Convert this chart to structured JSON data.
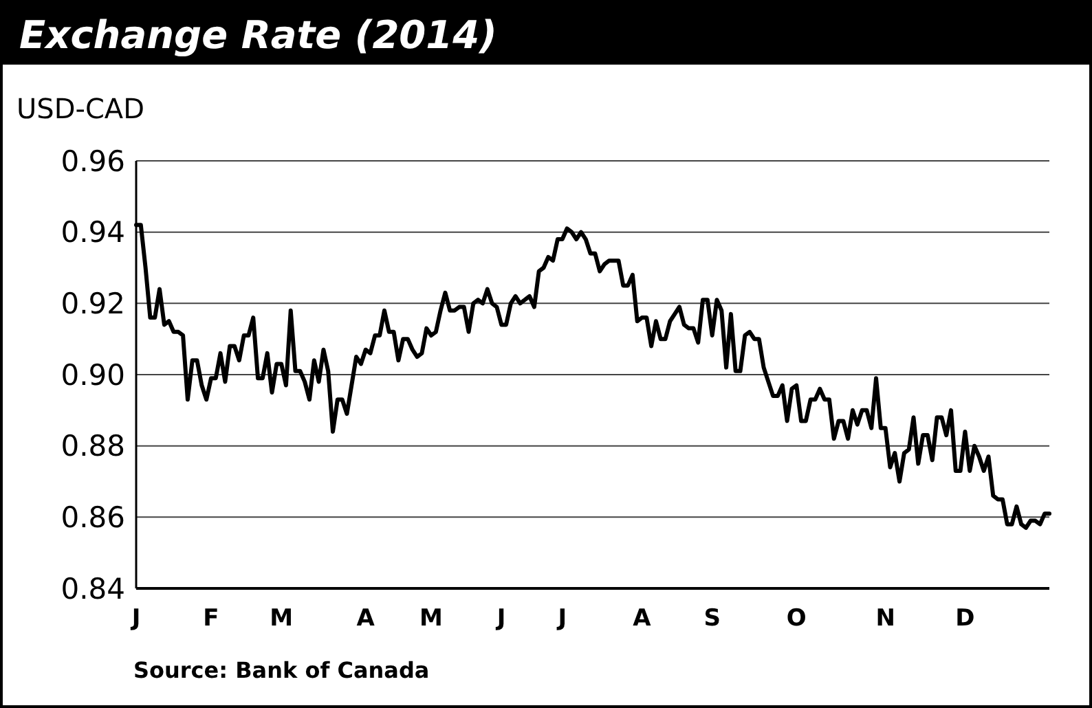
{
  "chart_data": {
    "type": "line",
    "title": "Exchange Rate (2014)",
    "ylabel": "USD-CAD",
    "annotations": [
      "Source: Bank of Canada"
    ],
    "categories": [
      "J",
      null,
      null,
      null,
      null,
      null,
      null,
      null,
      null,
      null,
      null,
      null,
      null,
      null,
      null,
      null,
      "F",
      null,
      null,
      null,
      null,
      null,
      null,
      null,
      null,
      null,
      null,
      null,
      null,
      null,
      null,
      "M",
      null,
      null,
      null,
      null,
      null,
      null,
      null,
      null,
      null,
      null,
      null,
      null,
      null,
      null,
      null,
      null,
      null,
      "A",
      null,
      null,
      null,
      null,
      null,
      null,
      null,
      null,
      null,
      null,
      null,
      null,
      null,
      "M",
      null,
      null,
      null,
      null,
      null,
      null,
      null,
      null,
      null,
      null,
      null,
      null,
      null,
      null,
      "J",
      null,
      null,
      null,
      null,
      null,
      null,
      null,
      null,
      null,
      null,
      null,
      null,
      "J",
      null,
      null,
      null,
      null,
      null,
      null,
      null,
      null,
      null,
      null,
      null,
      null,
      null,
      null,
      null,
      null,
      "A",
      null,
      null,
      null,
      null,
      null,
      null,
      null,
      null,
      null,
      null,
      null,
      null,
      null,
      null,
      "S",
      null,
      null,
      null,
      null,
      null,
      null,
      null,
      null,
      null,
      null,
      null,
      null,
      null,
      null,
      null,
      null,
      null,
      "O",
      null,
      null,
      null,
      null,
      null,
      null,
      null,
      null,
      null,
      null,
      null,
      null,
      null,
      null,
      null,
      null,
      null,
      null,
      "N",
      null,
      null,
      null,
      null,
      null,
      null,
      null,
      null,
      null,
      null,
      null,
      null,
      null,
      null,
      null,
      null,
      "D",
      null,
      null,
      null,
      null,
      null,
      null,
      null,
      null,
      null,
      null,
      null,
      null,
      null,
      null,
      null,
      null,
      null,
      null
    ],
    "values": [
      0.942,
      0.942,
      0.93,
      0.916,
      0.916,
      0.924,
      0.914,
      0.915,
      0.912,
      0.912,
      0.911,
      0.893,
      0.904,
      0.904,
      0.897,
      0.893,
      0.899,
      0.899,
      0.906,
      0.898,
      0.908,
      0.908,
      0.904,
      0.911,
      0.911,
      0.916,
      0.899,
      0.899,
      0.906,
      0.895,
      0.903,
      0.903,
      0.897,
      0.918,
      0.901,
      0.901,
      0.898,
      0.893,
      0.904,
      0.898,
      0.907,
      0.901,
      0.884,
      0.893,
      0.893,
      0.889,
      0.897,
      0.905,
      0.903,
      0.907,
      0.906,
      0.911,
      0.911,
      0.918,
      0.912,
      0.912,
      0.904,
      0.91,
      0.91,
      0.907,
      0.905,
      0.906,
      0.913,
      0.911,
      0.912,
      0.918,
      0.923,
      0.918,
      0.918,
      0.919,
      0.919,
      0.912,
      0.92,
      0.921,
      0.92,
      0.924,
      0.92,
      0.919,
      0.914,
      0.914,
      0.92,
      0.922,
      0.92,
      0.921,
      0.922,
      0.919,
      0.929,
      0.93,
      0.933,
      0.932,
      0.938,
      0.938,
      0.941,
      0.94,
      0.938,
      0.94,
      0.938,
      0.934,
      0.934,
      0.929,
      0.931,
      0.932,
      0.932,
      0.932,
      0.925,
      0.925,
      0.928,
      0.915,
      0.916,
      0.916,
      0.908,
      0.915,
      0.91,
      0.91,
      0.915,
      0.917,
      0.919,
      0.914,
      0.913,
      0.913,
      0.909,
      0.921,
      0.921,
      0.911,
      0.921,
      0.918,
      0.902,
      0.917,
      0.901,
      0.901,
      0.911,
      0.912,
      0.91,
      0.91,
      0.902,
      0.898,
      0.894,
      0.894,
      0.897,
      0.887,
      0.896,
      0.897,
      0.887,
      0.887,
      0.893,
      0.893,
      0.896,
      0.893,
      0.893,
      0.882,
      0.887,
      0.887,
      0.882,
      0.89,
      0.886,
      0.89,
      0.89,
      0.885,
      0.899,
      0.885,
      0.885,
      0.874,
      0.878,
      0.87,
      0.878,
      0.879,
      0.888,
      0.875,
      0.883,
      0.883,
      0.876,
      0.888,
      0.888,
      0.883,
      0.89,
      0.873,
      0.873,
      0.884,
      0.873,
      0.88,
      0.877,
      0.873,
      0.877,
      0.866,
      0.865,
      0.865,
      0.858,
      0.858,
      0.863,
      0.858,
      0.857,
      0.859,
      0.859,
      0.858,
      0.861,
      0.861
    ],
    "color": "#000000",
    "line_style": "solid",
    "marker": "none",
    "grid": "y",
    "ylim": [
      0.84,
      0.96
    ],
    "yticks": [
      {
        "value": 0.84,
        "label": "0.84"
      },
      {
        "value": 0.86,
        "label": "0.86"
      },
      {
        "value": 0.88,
        "label": "0.88"
      },
      {
        "value": 0.9,
        "label": "0.90"
      },
      {
        "value": 0.92,
        "label": "0.92"
      },
      {
        "value": 0.94,
        "label": "0.94"
      },
      {
        "value": 0.96,
        "label": "0.96"
      }
    ]
  }
}
